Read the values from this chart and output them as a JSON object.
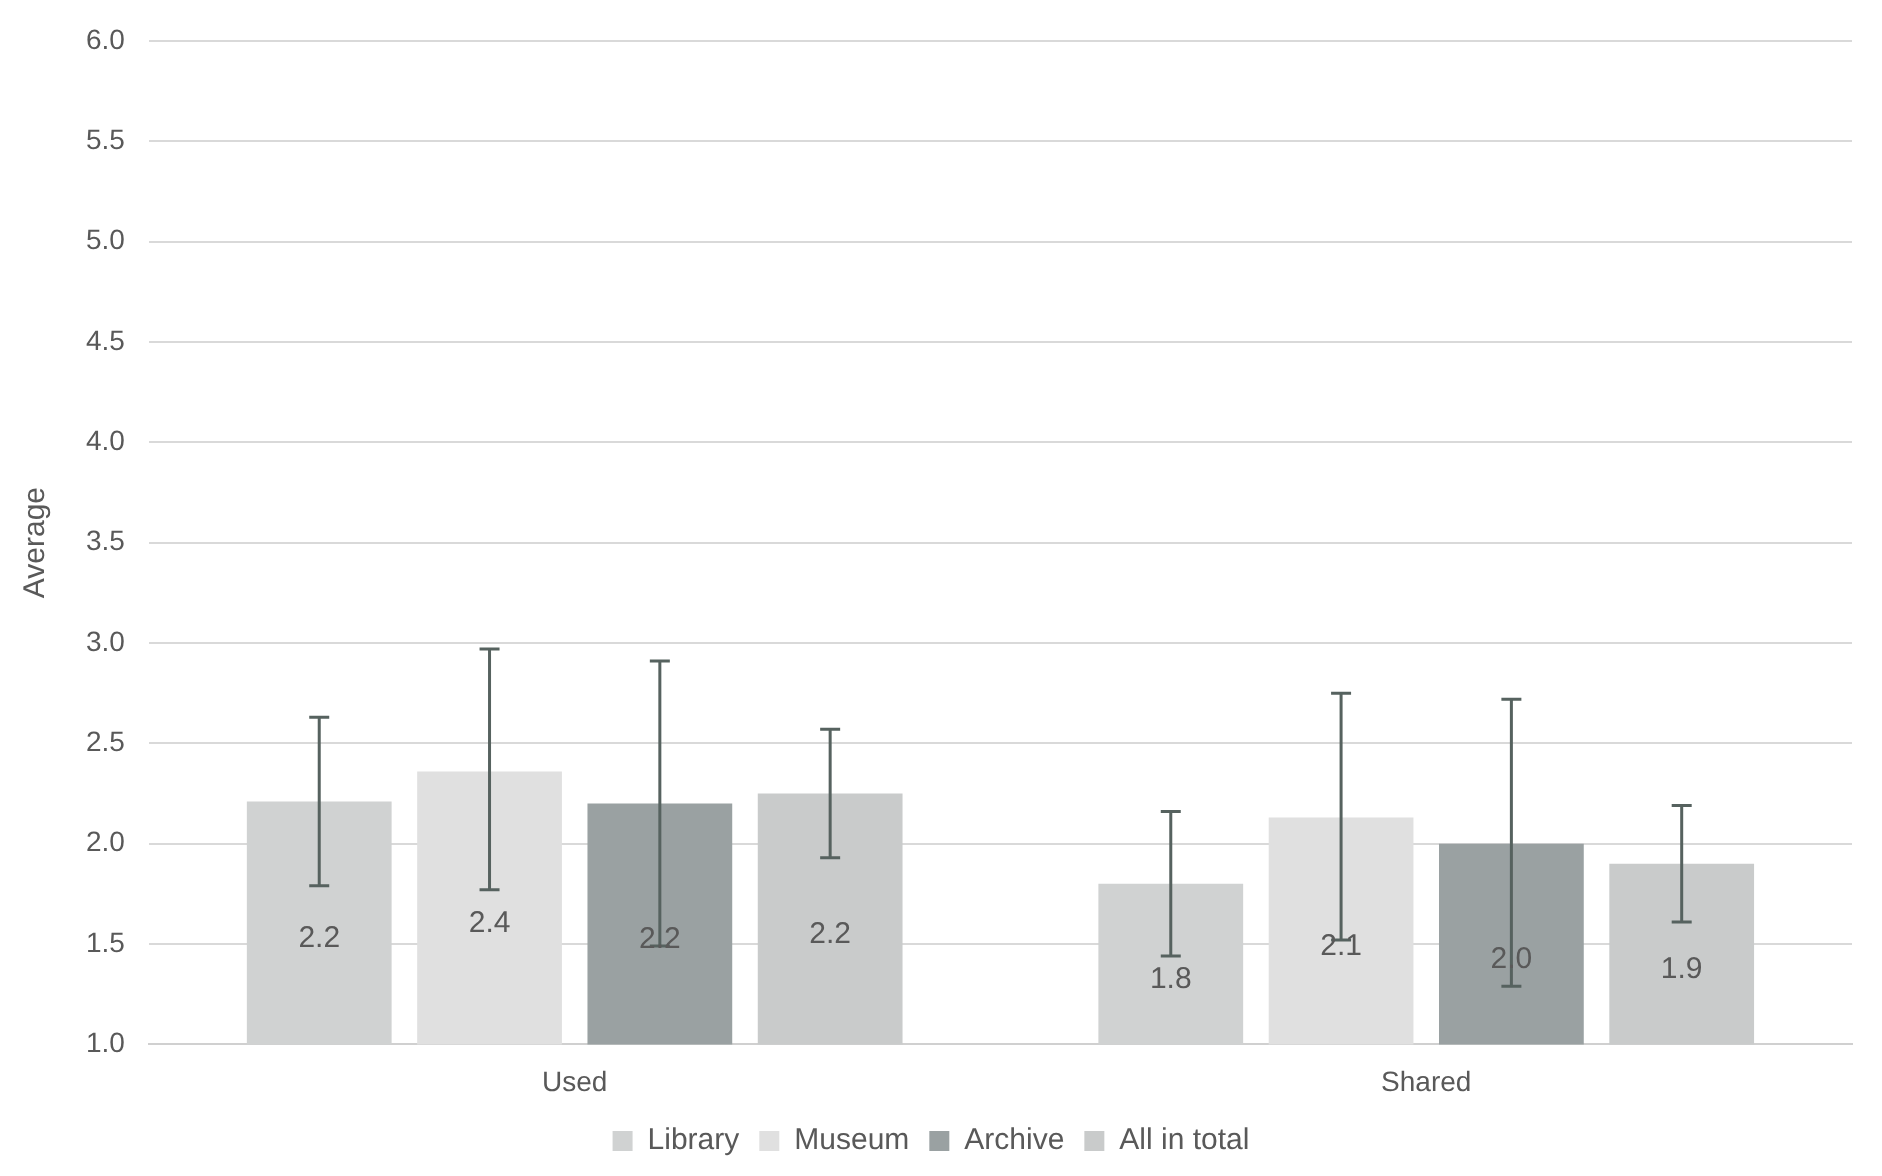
{
  "chart_data": {
    "type": "bar",
    "ylabel": "Average",
    "categories": [
      "Used",
      "Shared"
    ],
    "series": [
      {
        "name": "Library",
        "color": "#d0d2d2",
        "values": [
          2.21,
          1.8
        ],
        "errors": [
          [
            1.79,
            2.63
          ],
          [
            1.44,
            2.16
          ]
        ],
        "value_labels": [
          "2.2",
          "1.8"
        ]
      },
      {
        "name": "Museum",
        "color": "#e0e0e0",
        "values": [
          2.36,
          2.13
        ],
        "errors": [
          [
            1.77,
            2.97
          ],
          [
            1.52,
            2.75
          ]
        ],
        "value_labels": [
          "2.4",
          "2.1"
        ]
      },
      {
        "name": "Archive",
        "color": "#9aa1a2",
        "values": [
          2.2,
          2.0
        ],
        "errors": [
          [
            1.49,
            2.91
          ],
          [
            1.29,
            2.72
          ]
        ],
        "value_labels": [
          "2.2",
          "2.0"
        ]
      },
      {
        "name": "All in total",
        "color": "#c9cbcb",
        "values": [
          2.25,
          1.9
        ],
        "errors": [
          [
            1.93,
            2.57
          ],
          [
            1.61,
            2.19
          ]
        ],
        "value_labels": [
          "2.2",
          "1.9"
        ]
      }
    ],
    "ylim": [
      1.0,
      6.0
    ],
    "yticks": [
      {
        "value": 1,
        "label": "1.0"
      },
      {
        "value": 1.5,
        "label": "1.5"
      },
      {
        "value": 2,
        "label": "2.0"
      },
      {
        "value": 2.5,
        "label": "2.5"
      },
      {
        "value": 3,
        "label": "3.0"
      },
      {
        "value": 3.5,
        "label": "3.5"
      },
      {
        "value": 4,
        "label": "4.0"
      },
      {
        "value": 4.5,
        "label": "4.5"
      },
      {
        "value": 5,
        "label": "5.0"
      },
      {
        "value": 5.5,
        "label": "5.5"
      },
      {
        "value": 6,
        "label": "6.0"
      }
    ],
    "grid": "y",
    "legend": "bottom"
  }
}
